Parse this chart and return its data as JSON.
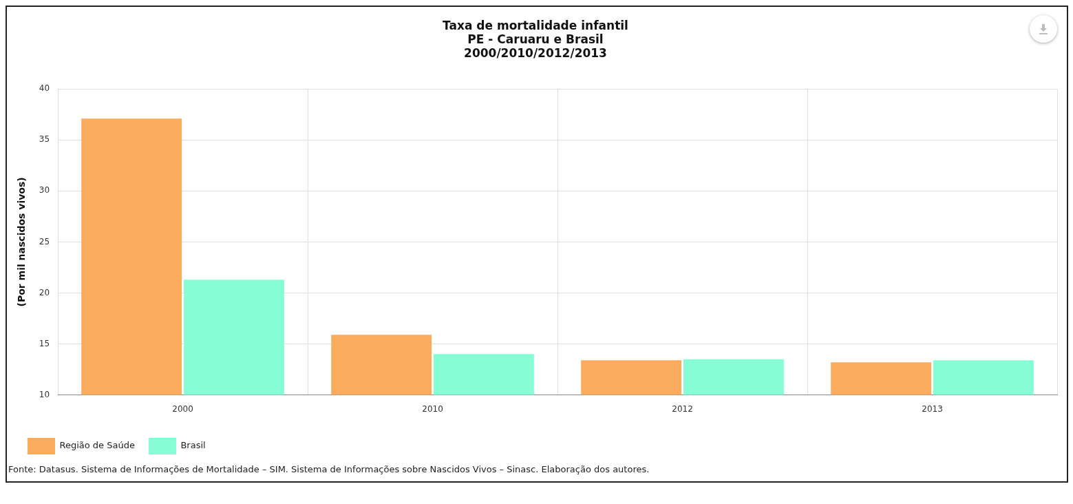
{
  "chart_data": {
    "type": "bar",
    "title": "Taxa de mortalidade infantil",
    "subtitle": "PE - Caruaru e Brasil\n2000/2010/2012/2013",
    "ylabel": "(Por mil nascidos vivos)",
    "categories": [
      "2000",
      "2010",
      "2012",
      "2013"
    ],
    "series": [
      {
        "name": "Região de Saúde",
        "color": "#fbab5e",
        "values": [
          37.1,
          15.9,
          13.4,
          13.2
        ]
      },
      {
        "name": "Brasil",
        "color": "#86fdd4",
        "values": [
          21.3,
          14.0,
          13.5,
          13.4
        ]
      }
    ],
    "ylim": [
      10,
      40
    ],
    "yticks": [
      10,
      15,
      20,
      25,
      30,
      35,
      40
    ],
    "grid": true,
    "legend": "bottom left",
    "annotations": [
      "Fonte: Datasus. Sistema de Informações de Mortalidade – SIM. Sistema de Informações sobre Nascidos Vivos – Sinasc. Elaboração dos autores."
    ]
  }
}
